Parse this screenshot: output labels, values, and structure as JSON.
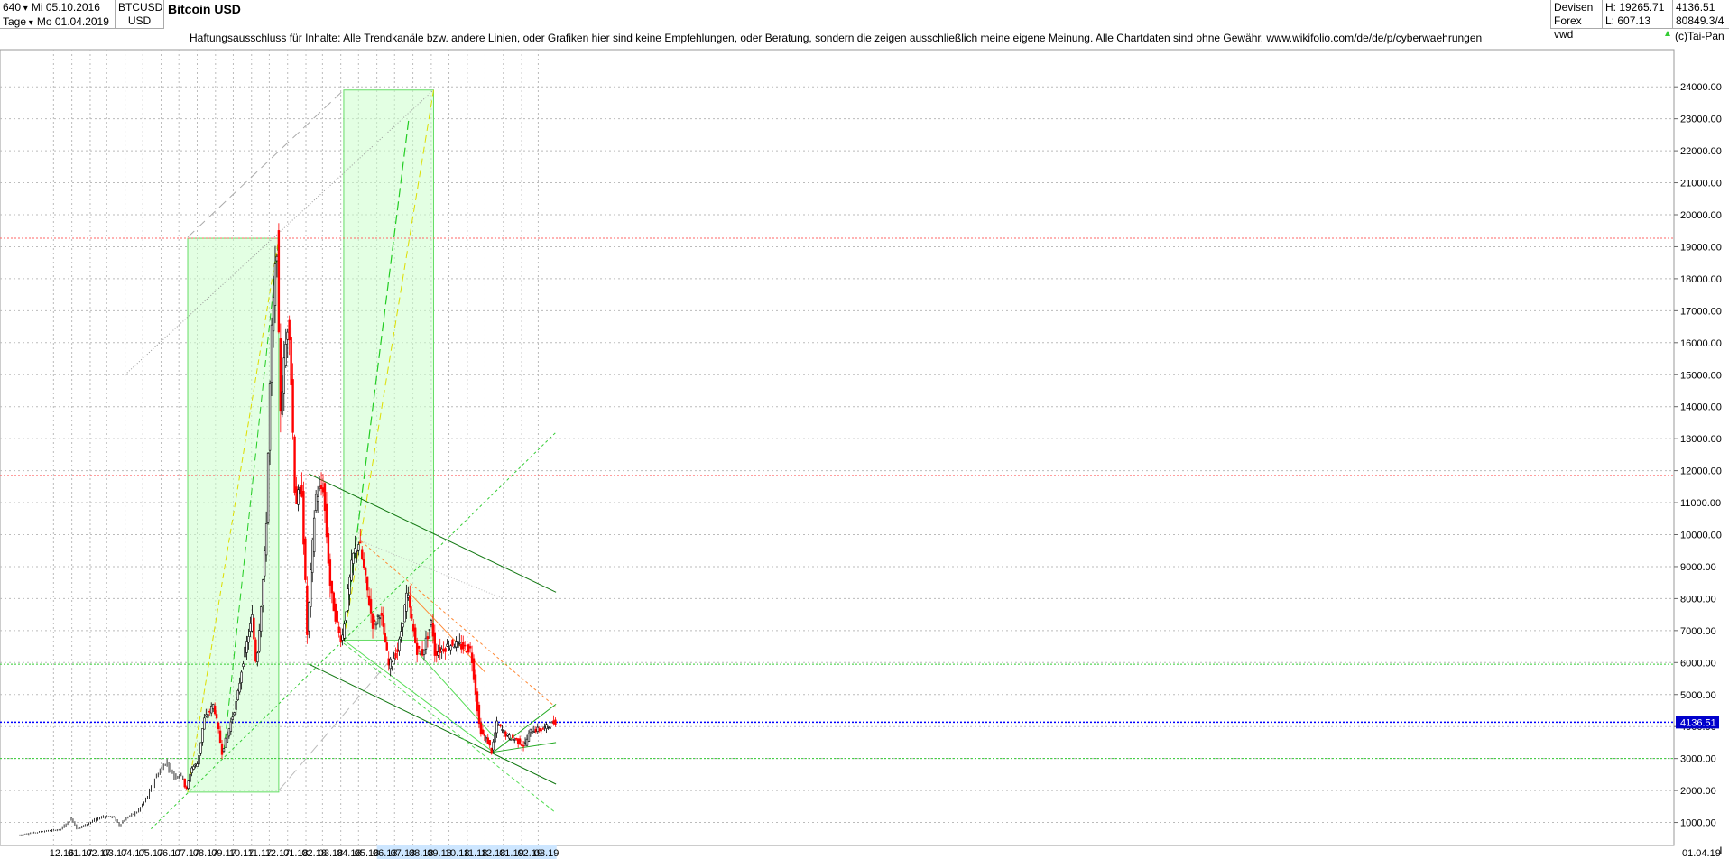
{
  "header": {
    "period_value": "640",
    "interval": "Tage",
    "date_from": "Mi 05.10.2016",
    "date_to": "Mo 01.04.2019",
    "symbol": "BTCUSD",
    "currency": "USD",
    "title": "Bitcoin USD",
    "category": "Devisen",
    "exchange": "Forex vwd",
    "high_label": "H: 19265.71",
    "low_label": "L: 607.13",
    "last_value": "4136.51",
    "volume_value": "80849.3/4",
    "copyright": "(c)Tai-Pan"
  },
  "disclaimer": "Haftungsausschluss für Inhalte: Alle Trendkanäle bzw. andere Linien, oder Grafiken hier sind keine Empfehlungen, oder Beratung, sondern die zeigen ausschließlich meine eigene Meinung. Alle Chartdaten sind ohne Gewähr.  www.wikifolio.com/de/de/p/cyberwaehrungen",
  "corner_button": "L",
  "chart_data": {
    "type": "candlestick",
    "y_axis": {
      "ylim": [
        400,
        25000
      ],
      "ticks": [
        1000,
        2000,
        3000,
        4000,
        5000,
        6000,
        7000,
        8000,
        9000,
        10000,
        11000,
        12000,
        13000,
        14000,
        15000,
        16000,
        17000,
        18000,
        19000,
        20000,
        21000,
        22000,
        23000,
        24000
      ],
      "tick_labels": [
        "1000.00",
        "2000.00",
        "3000.00",
        "4000.00",
        "5000.00",
        "6000.00",
        "7000.00",
        "8000.00",
        "9000.00",
        "10000.00",
        "11000.00",
        "12000.00",
        "13000.00",
        "14000.00",
        "15000.00",
        "16000.00",
        "17000.00",
        "18000.00",
        "19000.00",
        "20000.00",
        "21000.00",
        "22000.00",
        "23000.00",
        "24000.00"
      ],
      "position": "right"
    },
    "x_axis": {
      "month_labels": [
        "12.16",
        "01.17",
        "02.17",
        "03.17",
        "04.17",
        "05.17",
        "06.17",
        "07.17",
        "08.17",
        "09.17",
        "10.17",
        "11.17",
        "12.17",
        "01.18",
        "02.18",
        "03.18",
        "04.18",
        "05.18",
        "06.18",
        "07.18",
        "08.18",
        "09.18",
        "10.18",
        "11.18",
        "12.18",
        "01.19",
        "02.19",
        "03.19"
      ],
      "end_label": "01.04.19",
      "highlighted_months": [
        "06.18",
        "07.18",
        "08.18",
        "09.18",
        "10.18",
        "11.18",
        "12.18",
        "01.19",
        "02.19",
        "03.19"
      ]
    },
    "grid": true,
    "current_price": 4136.51,
    "current_price_label": "4136.51",
    "price_path": [
      [
        "2016-10-05",
        610
      ],
      [
        "2016-11-15",
        720
      ],
      [
        "2016-12-15",
        780
      ],
      [
        "2017-01-04",
        1130
      ],
      [
        "2017-01-12",
        800
      ],
      [
        "2017-02-01",
        980
      ],
      [
        "2017-02-25",
        1190
      ],
      [
        "2017-03-15",
        1180
      ],
      [
        "2017-03-25",
        920
      ],
      [
        "2017-04-10",
        1200
      ],
      [
        "2017-04-25",
        1340
      ],
      [
        "2017-05-10",
        1750
      ],
      [
        "2017-05-25",
        2400
      ],
      [
        "2017-06-12",
        2900
      ],
      [
        "2017-06-26",
        2450
      ],
      [
        "2017-07-10",
        2500
      ],
      [
        "2017-07-16",
        1950
      ],
      [
        "2017-07-25",
        2700
      ],
      [
        "2017-08-05",
        2850
      ],
      [
        "2017-08-15",
        4200
      ],
      [
        "2017-09-01",
        4700
      ],
      [
        "2017-09-15",
        3200
      ],
      [
        "2017-09-25",
        3800
      ],
      [
        "2017-10-10",
        4800
      ],
      [
        "2017-10-20",
        6000
      ],
      [
        "2017-11-05",
        7400
      ],
      [
        "2017-11-12",
        5900
      ],
      [
        "2017-11-28",
        9800
      ],
      [
        "2017-12-07",
        16000
      ],
      [
        "2017-12-17",
        19100
      ],
      [
        "2017-12-22",
        13800
      ],
      [
        "2018-01-06",
        17000
      ],
      [
        "2018-01-17",
        11000
      ],
      [
        "2018-01-28",
        11400
      ],
      [
        "2018-02-06",
        6900
      ],
      [
        "2018-02-20",
        11200
      ],
      [
        "2018-03-05",
        11500
      ],
      [
        "2018-03-18",
        8200
      ],
      [
        "2018-04-01",
        6900
      ],
      [
        "2018-04-06",
        6700
      ],
      [
        "2018-04-24",
        9300
      ],
      [
        "2018-05-05",
        9800
      ],
      [
        "2018-05-29",
        7100
      ],
      [
        "2018-06-10",
        7600
      ],
      [
        "2018-06-24",
        5900
      ],
      [
        "2018-07-10",
        6400
      ],
      [
        "2018-07-25",
        8200
      ],
      [
        "2018-08-10",
        6400
      ],
      [
        "2018-08-20",
        6300
      ],
      [
        "2018-09-05",
        7300
      ],
      [
        "2018-09-10",
        6300
      ],
      [
        "2018-10-10",
        6600
      ],
      [
        "2018-11-10",
        6400
      ],
      [
        "2018-11-15",
        5600
      ],
      [
        "2018-11-25",
        3900
      ],
      [
        "2018-12-10",
        3500
      ],
      [
        "2018-12-15",
        3200
      ],
      [
        "2018-12-24",
        4100
      ],
      [
        "2019-01-10",
        3700
      ],
      [
        "2019-01-25",
        3600
      ],
      [
        "2019-02-08",
        3400
      ],
      [
        "2019-02-20",
        3900
      ],
      [
        "2019-03-10",
        3900
      ],
      [
        "2019-03-31",
        4136
      ]
    ],
    "horizontal_levels": [
      {
        "value": 19265,
        "color": "#ff6666"
      },
      {
        "value": 11850,
        "color": "#ff6666"
      },
      {
        "value": 5950,
        "color": "#33cc33"
      },
      {
        "value": 3000,
        "color": "#33cc33"
      },
      {
        "value": 4136.51,
        "color": "#0000ff"
      }
    ],
    "colors": {
      "up": "#000000",
      "down": "#ff0000",
      "early": "#000000",
      "price_label_bg": "#0000cc",
      "box_fill": "#ccffcc",
      "box_stroke": "#66dd66"
    }
  }
}
